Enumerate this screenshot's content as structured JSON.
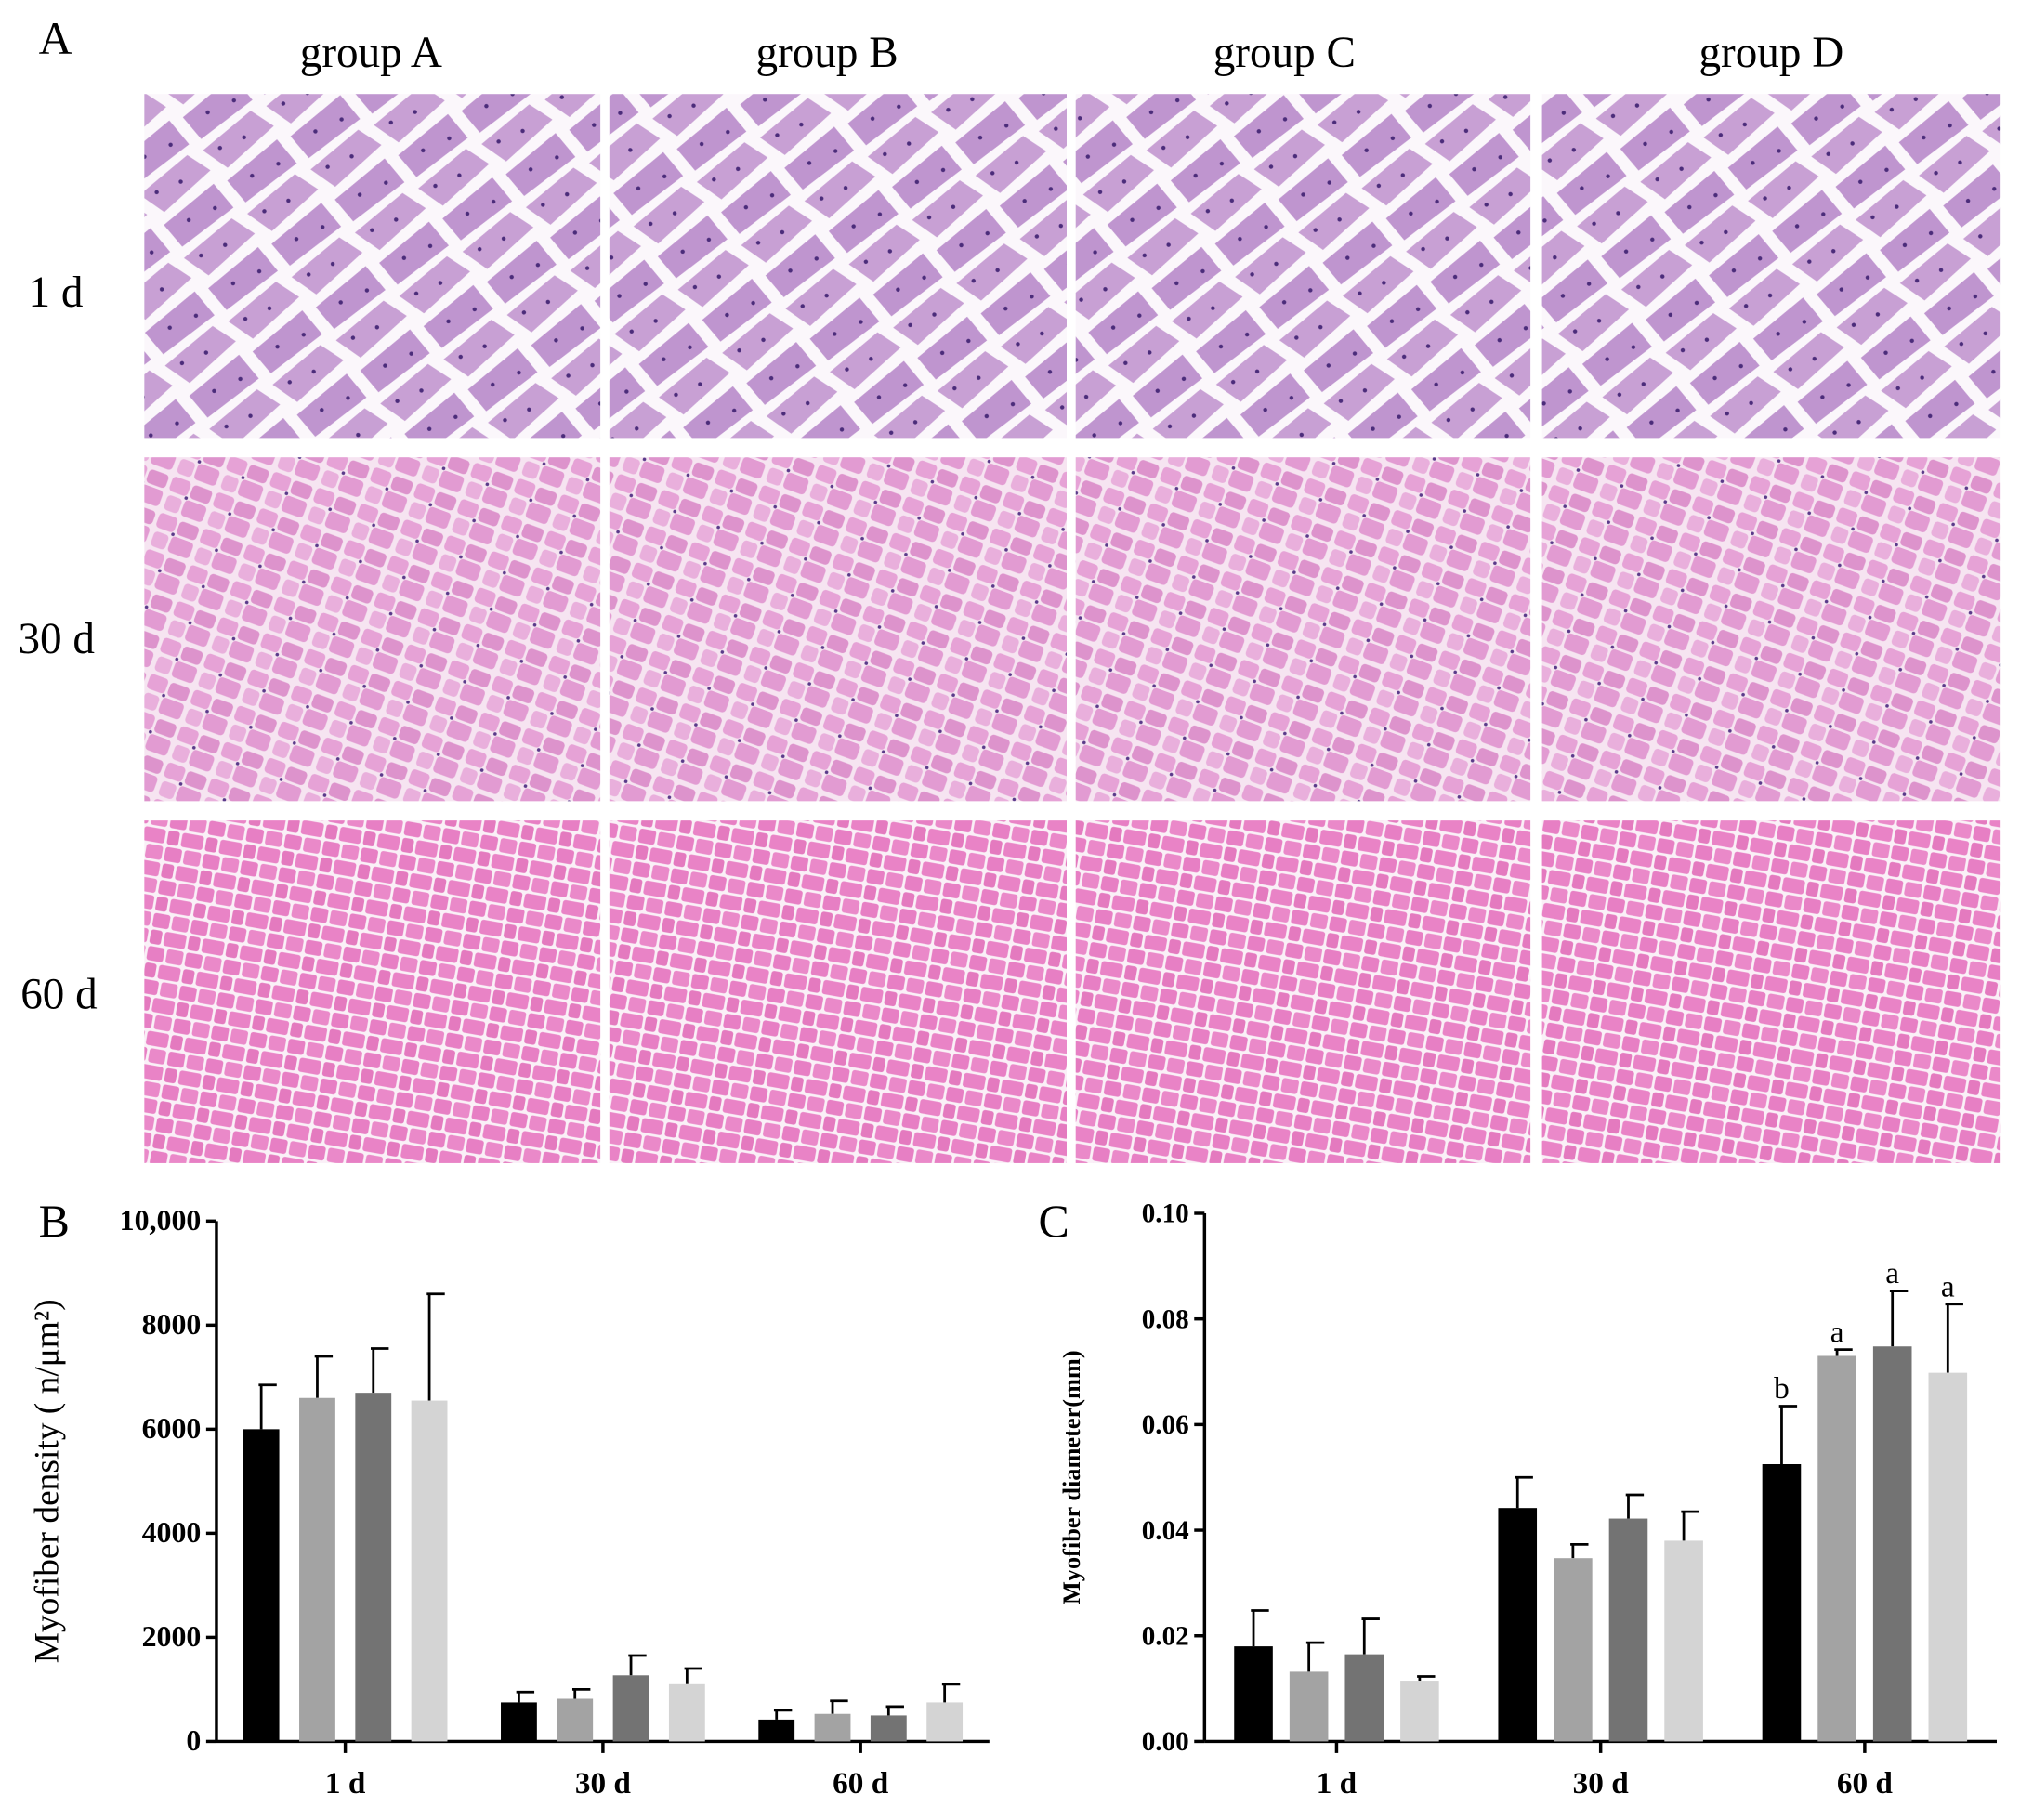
{
  "panel_labels": [
    "A",
    "B",
    "C"
  ],
  "columns": [
    "group A",
    "group B",
    "group C",
    "group D"
  ],
  "rows": [
    "1 d",
    "30 d",
    "60 d"
  ],
  "chart_data": [
    {
      "type": "bar",
      "ylabel": "Myofiber density ( n/μm²)",
      "categories": [
        "1 d",
        "30 d",
        "60 d"
      ],
      "ylim": [
        0,
        10000
      ],
      "yticks": [
        0,
        2000,
        4000,
        6000,
        8000,
        {
          "value": 10000,
          "label": "10,000"
        }
      ],
      "series": [
        {
          "color": "#000000",
          "values": [
            6000,
            750,
            420
          ],
          "errors": [
            850,
            200,
            180
          ]
        },
        {
          "color": "#a3a3a3",
          "values": [
            6600,
            820,
            530
          ],
          "errors": [
            800,
            180,
            250
          ]
        },
        {
          "color": "#737373",
          "values": [
            6700,
            1270,
            500
          ],
          "errors": [
            850,
            380,
            170
          ]
        },
        {
          "color": "#d4d4d4",
          "values": [
            6550,
            1100,
            750
          ],
          "errors": [
            2050,
            300,
            350
          ]
        }
      ]
    },
    {
      "type": "bar",
      "ylabel": "Myofiber diameter(mm)",
      "categories": [
        "1 d",
        "30 d",
        "60 d"
      ],
      "ylim": [
        0,
        0.1
      ],
      "yticks": [
        {
          "value": 0,
          "label": "0.00"
        },
        {
          "value": 0.02,
          "label": "0.02"
        },
        {
          "value": 0.04,
          "label": "0.04"
        },
        {
          "value": 0.06,
          "label": "0.06"
        },
        {
          "value": 0.08,
          "label": "0.08"
        },
        {
          "value": 0.1,
          "label": "0.10"
        }
      ],
      "series": [
        {
          "color": "#000000",
          "values": [
            0.018,
            0.0442,
            0.0525
          ],
          "errors": [
            0.0068,
            0.0058,
            0.011
          ],
          "letters": [
            null,
            null,
            "b"
          ]
        },
        {
          "color": "#a3a3a3",
          "values": [
            0.0132,
            0.0347,
            0.073
          ],
          "errors": [
            0.0055,
            0.0026,
            0.0012
          ],
          "letters": [
            null,
            null,
            "a"
          ]
        },
        {
          "color": "#737373",
          "values": [
            0.0165,
            0.0422,
            0.0748
          ],
          "errors": [
            0.0067,
            0.0045,
            0.0105
          ],
          "letters": [
            null,
            null,
            "a"
          ]
        },
        {
          "color": "#d4d4d4",
          "values": [
            0.0115,
            0.038,
            0.0698
          ],
          "errors": [
            0.0008,
            0.0055,
            0.013
          ],
          "letters": [
            null,
            null,
            "a"
          ]
        }
      ]
    }
  ]
}
